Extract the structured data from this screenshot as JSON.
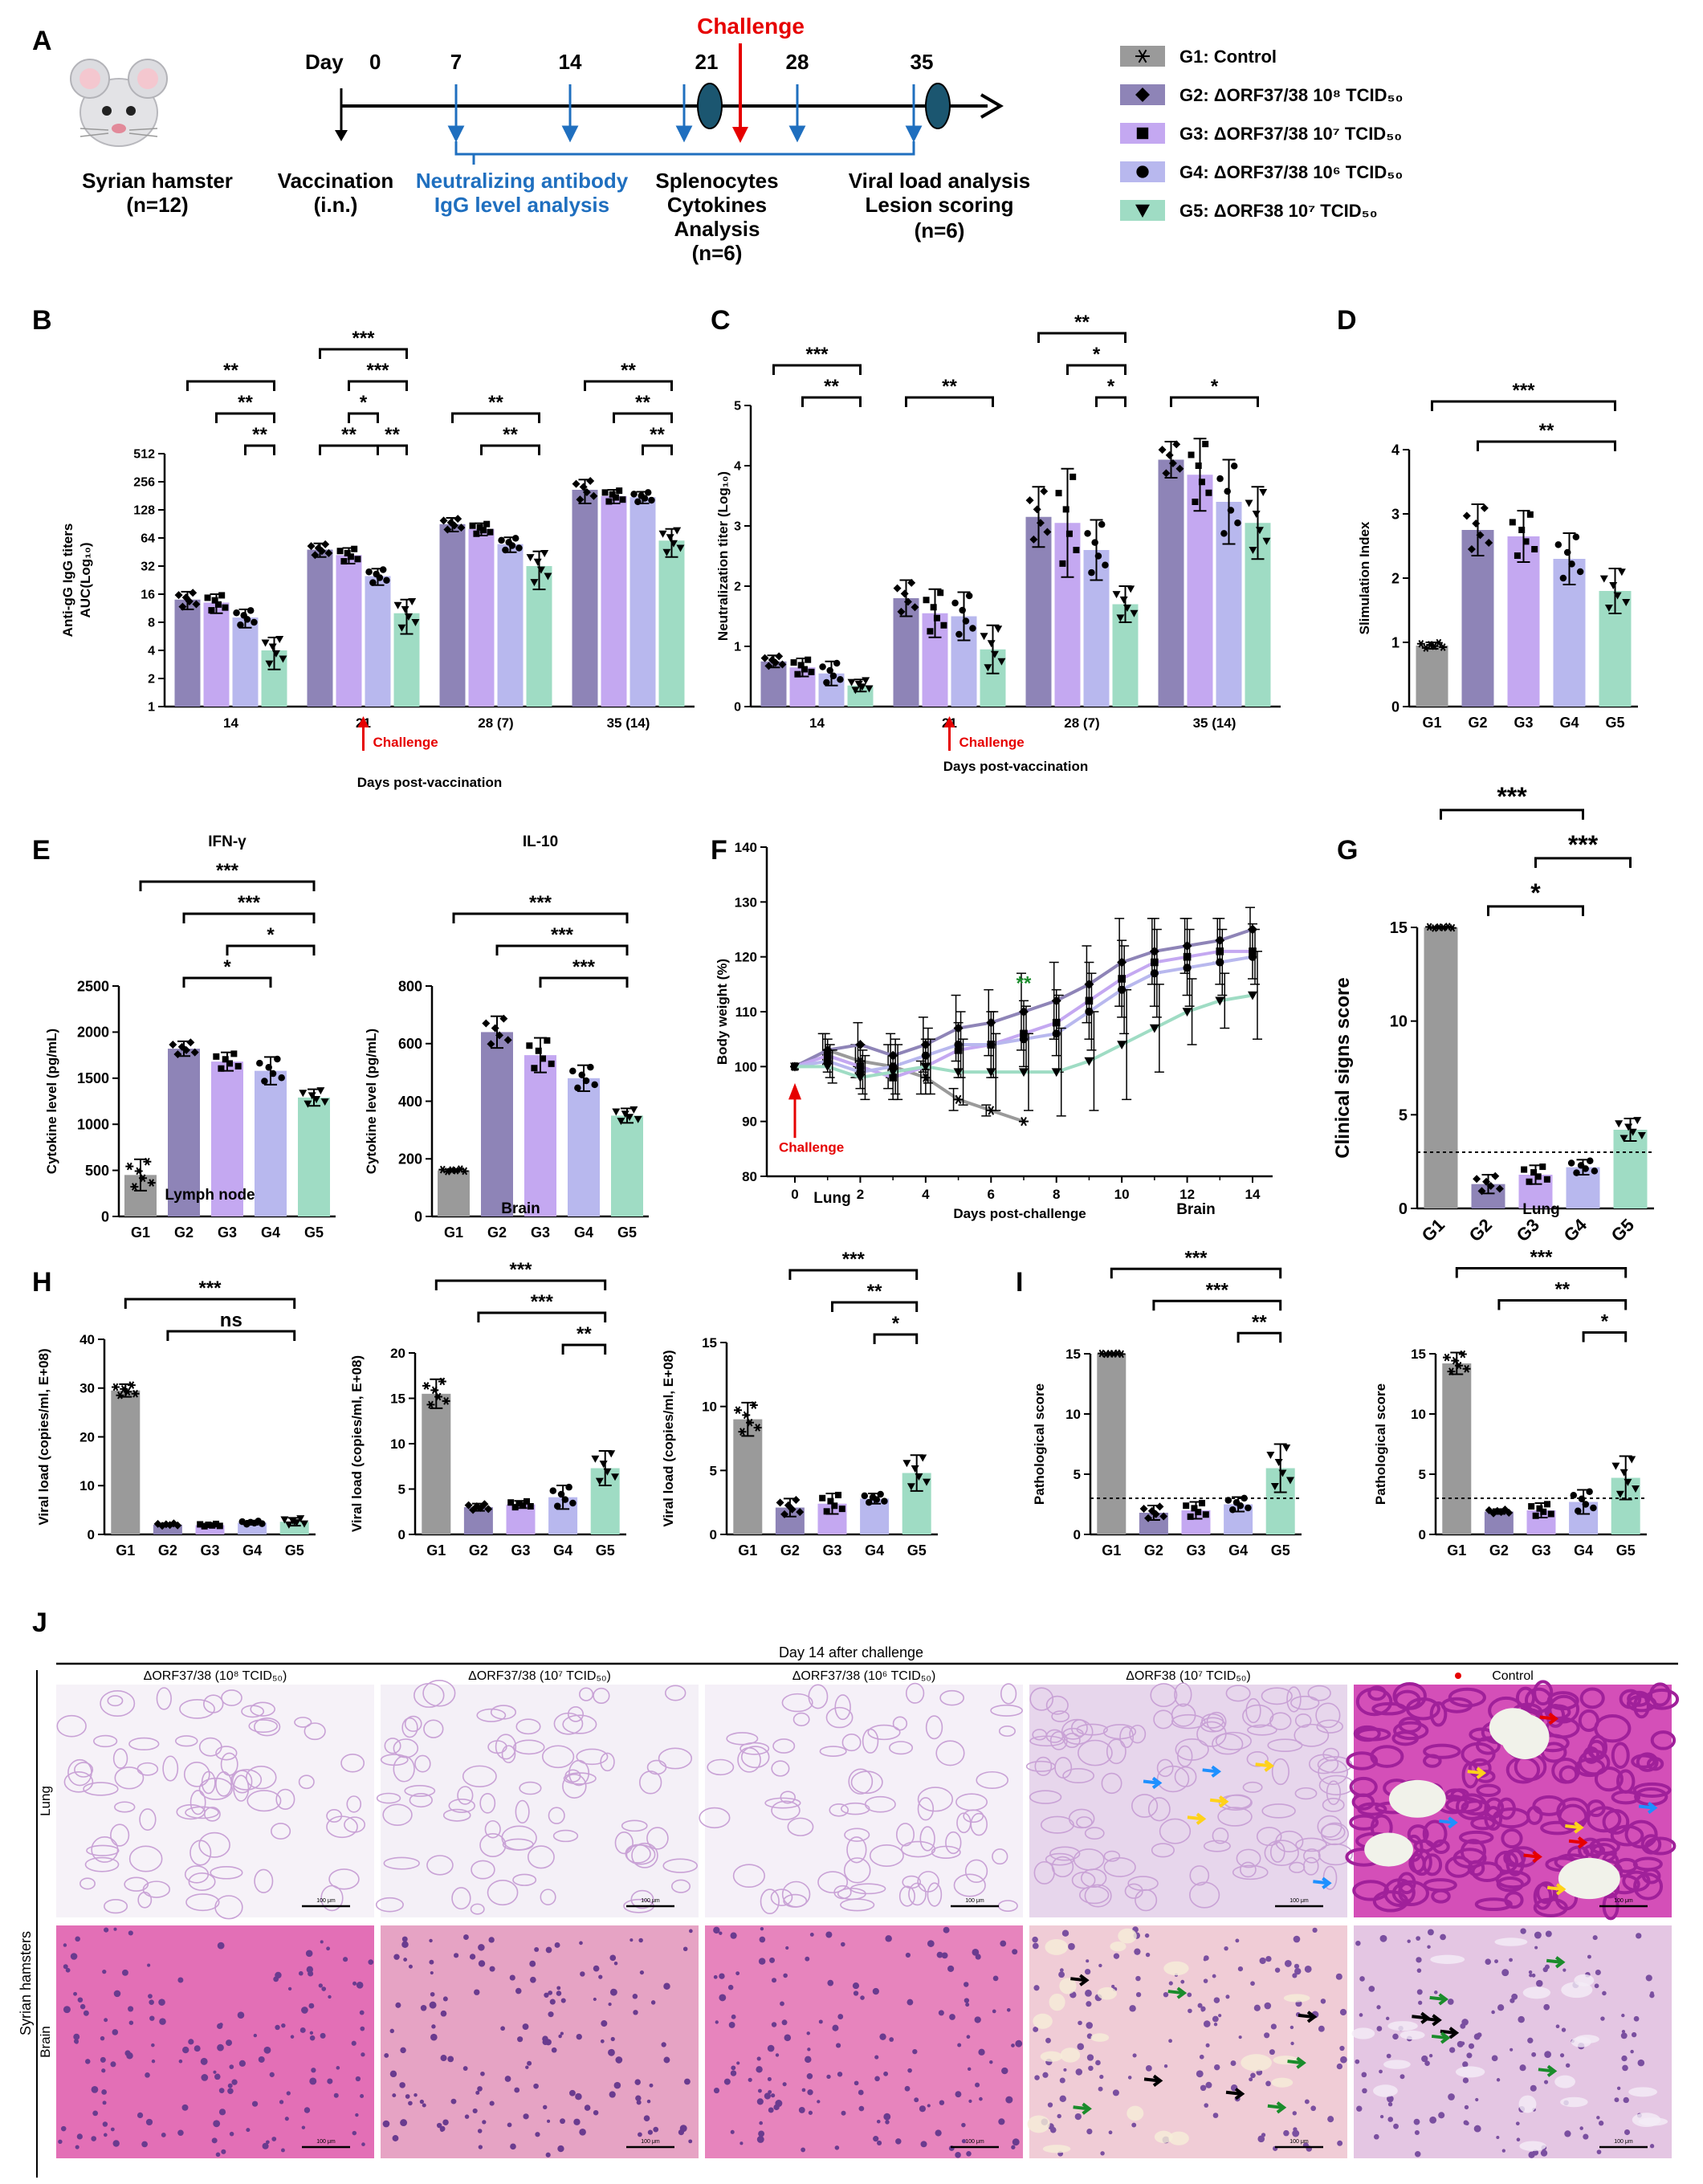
{
  "colors": {
    "g1": "#9a9a9a",
    "g2": "#8e84b7",
    "g3": "#c4a8f1",
    "g4": "#b8b8ee",
    "g5": "#9fdcc4",
    "blue": "#1f6fbf",
    "red": "#e60000",
    "green": "#1a8c2b",
    "ellipse": "#1b5670"
  },
  "panelA": {
    "letter": "A",
    "animal": "Syrian hamster",
    "n_total": "(n=12)",
    "day_label": "Day",
    "days": [
      "0",
      "7",
      "14",
      "21",
      "28",
      "35"
    ],
    "challenge": "Challenge",
    "vaccination": "Vaccination",
    "route": "(i.n.)",
    "nab_line1": "Neutralizing antibody",
    "nab_line2": "IgG level  analysis",
    "spl_line1": "Splenocytes",
    "spl_line2": "Cytokines",
    "spl_line3": "Analysis",
    "spl_n": "(n=6)",
    "vl_line1": "Viral load analysis",
    "vl_line2": "Lesion scoring",
    "vl_n": "(n=6)",
    "legend": [
      {
        "symbol": "asterisk",
        "group": "G1",
        "label": "G1: Control"
      },
      {
        "symbol": "diamond",
        "group": "G2",
        "label": "G2: ΔORF37/38 10⁸ TCID₅₀"
      },
      {
        "symbol": "square",
        "group": "G3",
        "label": "G3: ΔORF37/38 10⁷ TCID₅₀"
      },
      {
        "symbol": "circle",
        "group": "G4",
        "label": "G4: ΔORF37/38 10⁶ TCID₅₀"
      },
      {
        "symbol": "triangle",
        "group": "G5",
        "label": "G5: ΔORF38       10⁷ TCID₅₀"
      }
    ]
  },
  "chart_data": [
    {
      "id": "B",
      "type": "bar",
      "letter": "B",
      "ylabel_line1": "Anti-gG IgG titers",
      "ylabel_line2": "AUC(Log₁₀)",
      "xlabel": "Days post-vaccination",
      "challenge": "Challenge",
      "scale": "log2",
      "ylim": [
        1,
        512
      ],
      "yticks": [
        "1",
        "2",
        "4",
        "8",
        "16",
        "32",
        "64",
        "128",
        "256",
        "512"
      ],
      "categories": [
        "14",
        "21",
        "28 (7)",
        "35 (14)"
      ],
      "groups": [
        "G2",
        "G3",
        "G4",
        "G5"
      ],
      "values": [
        [
          14,
          13,
          9,
          4
        ],
        [
          48,
          42,
          25,
          10
        ],
        [
          90,
          80,
          55,
          32
        ],
        [
          210,
          180,
          175,
          60
        ]
      ],
      "errors": [
        [
          3,
          3,
          2,
          1.5
        ],
        [
          8,
          8,
          5,
          4
        ],
        [
          15,
          12,
          10,
          14
        ],
        [
          60,
          30,
          25,
          20
        ]
      ],
      "brackets": [
        {
          "cat": 0,
          "from": 0,
          "to": 3,
          "level": 2,
          "stars": "**"
        },
        {
          "cat": 0,
          "from": 1,
          "to": 3,
          "level": 1,
          "stars": "**"
        },
        {
          "cat": 0,
          "from": 2,
          "to": 3,
          "level": 0,
          "stars": "**"
        },
        {
          "cat": 1,
          "from": 0,
          "to": 3,
          "level": 3,
          "stars": "***"
        },
        {
          "cat": 1,
          "from": 1,
          "to": 3,
          "level": 2,
          "stars": "***"
        },
        {
          "cat": 1,
          "from": 1,
          "to": 2,
          "level": 1,
          "stars": "*"
        },
        {
          "cat": 1,
          "from": 0,
          "to": 2,
          "level": 0,
          "stars": "**"
        },
        {
          "cat": 1,
          "from": 2,
          "to": 3,
          "level": 0,
          "stars": "**"
        },
        {
          "cat": 2,
          "from": 0,
          "to": 3,
          "level": 1,
          "stars": "**"
        },
        {
          "cat": 2,
          "from": 1,
          "to": 3,
          "level": 0,
          "stars": "**"
        },
        {
          "cat": 3,
          "from": 0,
          "to": 3,
          "level": 2,
          "stars": "**"
        },
        {
          "cat": 3,
          "from": 1,
          "to": 3,
          "level": 1,
          "stars": "**"
        },
        {
          "cat": 3,
          "from": 2,
          "to": 3,
          "level": 0,
          "stars": "**"
        }
      ]
    },
    {
      "id": "C",
      "type": "bar",
      "letter": "C",
      "ylabel": "Neutralization titer (Log₁₀)",
      "xlabel": "Days post-vaccination",
      "challenge": "Challenge",
      "ylim": [
        0,
        5
      ],
      "yticks": [
        "0",
        "1",
        "2",
        "3",
        "4",
        "5"
      ],
      "categories": [
        "14",
        "21",
        "28 (7)",
        "35 (14)"
      ],
      "groups": [
        "G2",
        "G3",
        "G4",
        "G5"
      ],
      "values": [
        [
          0.75,
          0.65,
          0.55,
          0.35
        ],
        [
          1.8,
          1.55,
          1.5,
          0.95
        ],
        [
          3.15,
          3.05,
          2.6,
          1.7
        ],
        [
          4.1,
          3.85,
          3.4,
          3.05
        ]
      ],
      "errors": [
        [
          0.1,
          0.15,
          0.2,
          0.1
        ],
        [
          0.3,
          0.4,
          0.4,
          0.4
        ],
        [
          0.5,
          0.9,
          0.5,
          0.3
        ],
        [
          0.3,
          0.6,
          0.7,
          0.6
        ]
      ],
      "brackets": [
        {
          "cat": 0,
          "from": 0,
          "to": 3,
          "level": 1,
          "stars": "***"
        },
        {
          "cat": 0,
          "from": 1,
          "to": 3,
          "level": 0,
          "stars": "**"
        },
        {
          "cat": 1,
          "from": 0,
          "to": 3,
          "level": 0,
          "stars": "**"
        },
        {
          "cat": 2,
          "from": 0,
          "to": 3,
          "level": 2,
          "stars": "**"
        },
        {
          "cat": 2,
          "from": 1,
          "to": 3,
          "level": 1,
          "stars": "*"
        },
        {
          "cat": 2,
          "from": 2,
          "to": 3,
          "level": 0,
          "stars": "*"
        },
        {
          "cat": 3,
          "from": 0,
          "to": 3,
          "level": 0,
          "stars": "*"
        }
      ]
    },
    {
      "id": "D",
      "type": "bar",
      "letter": "D",
      "ylabel": "Slimulation Index",
      "ylim": [
        0,
        4
      ],
      "yticks": [
        "0",
        "1",
        "2",
        "3",
        "4"
      ],
      "categories": [
        "G1",
        "G2",
        "G3",
        "G4",
        "G5"
      ],
      "values": [
        0.95,
        2.75,
        2.65,
        2.3,
        1.8
      ],
      "errors": [
        0.05,
        0.4,
        0.4,
        0.4,
        0.35
      ],
      "brackets": [
        {
          "from": 0,
          "to": 4,
          "level": 1,
          "stars": "***"
        },
        {
          "from": 1,
          "to": 4,
          "level": 0,
          "stars": "**"
        }
      ]
    },
    {
      "id": "E1",
      "type": "bar",
      "letter": "E",
      "title": "IFN-γ",
      "ylabel": "Cytokine level (pg/mL)",
      "ylim": [
        0,
        2500
      ],
      "yticks": [
        "0",
        "500",
        "1000",
        "1500",
        "2000",
        "2500"
      ],
      "categories": [
        "G1",
        "G2",
        "G3",
        "G4",
        "G5"
      ],
      "values": [
        450,
        1820,
        1680,
        1580,
        1290
      ],
      "errors": [
        170,
        80,
        100,
        150,
        90
      ],
      "brackets": [
        {
          "from": 0,
          "to": 4,
          "level": 3,
          "stars": "***"
        },
        {
          "from": 1,
          "to": 4,
          "level": 2,
          "stars": "***"
        },
        {
          "from": 2,
          "to": 4,
          "level": 1,
          "stars": "*"
        },
        {
          "from": 1,
          "to": 3,
          "level": 0,
          "stars": "*"
        }
      ]
    },
    {
      "id": "E2",
      "type": "bar",
      "title": "IL-10",
      "ylabel": "Cytokine level (pg/mL)",
      "ylim": [
        0,
        800
      ],
      "yticks": [
        "0",
        "200",
        "400",
        "600",
        "800"
      ],
      "categories": [
        "G1",
        "G2",
        "G3",
        "G4",
        "G5"
      ],
      "values": [
        160,
        640,
        560,
        480,
        350
      ],
      "errors": [
        5,
        55,
        60,
        45,
        25
      ],
      "brackets": [
        {
          "from": 0,
          "to": 4,
          "level": 2,
          "stars": "***"
        },
        {
          "from": 1,
          "to": 4,
          "level": 1,
          "stars": "***"
        },
        {
          "from": 2,
          "to": 4,
          "level": 0,
          "stars": "***"
        }
      ]
    },
    {
      "id": "F",
      "type": "line",
      "letter": "F",
      "ylabel": "Body weight (%)",
      "xlabel": "Days post-challenge",
      "challenge": "Challenge",
      "xlim": [
        0,
        14
      ],
      "ylim": [
        80,
        140
      ],
      "xticks": [
        "0",
        "2",
        "4",
        "6",
        "8",
        "10",
        "12",
        "14"
      ],
      "yticks": [
        "80",
        "90",
        "100",
        "110",
        "120",
        "130",
        "140"
      ],
      "annotation": "**",
      "annotation_x": 7,
      "annotation_y": 114,
      "series": [
        {
          "name": "G1",
          "x": [
            0,
            1,
            2,
            3,
            4,
            5,
            6,
            7
          ],
          "y": [
            100,
            103,
            101,
            100,
            98,
            94,
            92,
            90
          ],
          "err": [
            0,
            3,
            3,
            4,
            3,
            2,
            1,
            0
          ]
        },
        {
          "name": "G2",
          "x": [
            0,
            1,
            2,
            3,
            4,
            5,
            6,
            7,
            8,
            9,
            10,
            11,
            12,
            13,
            14
          ],
          "y": [
            100,
            103,
            104,
            102,
            104,
            107,
            108,
            110,
            112,
            115,
            119,
            121,
            122,
            123,
            125
          ],
          "err": [
            0,
            3,
            4,
            4,
            5,
            6,
            6,
            7,
            7,
            7,
            8,
            6,
            5,
            4,
            4
          ]
        },
        {
          "name": "G3",
          "x": [
            0,
            1,
            2,
            3,
            4,
            5,
            6,
            7,
            8,
            9,
            10,
            11,
            12,
            13,
            14
          ],
          "y": [
            100,
            102,
            100,
            98,
            100,
            103,
            104,
            106,
            108,
            112,
            116,
            119,
            120,
            121,
            121
          ],
          "err": [
            0,
            3,
            4,
            4,
            5,
            5,
            6,
            6,
            6,
            7,
            7,
            8,
            7,
            6,
            5
          ]
        },
        {
          "name": "G4",
          "x": [
            0,
            1,
            2,
            3,
            4,
            5,
            6,
            7,
            8,
            9,
            10,
            11,
            12,
            13,
            14
          ],
          "y": [
            100,
            101,
            99,
            100,
            102,
            104,
            104,
            105,
            106,
            110,
            114,
            117,
            118,
            119,
            120
          ],
          "err": [
            0,
            3,
            4,
            5,
            5,
            6,
            6,
            6,
            7,
            7,
            8,
            8,
            7,
            6,
            5
          ]
        },
        {
          "name": "G5",
          "x": [
            0,
            1,
            2,
            3,
            4,
            5,
            6,
            7,
            8,
            9,
            10,
            11,
            12,
            13,
            14
          ],
          "y": [
            100,
            100,
            98,
            99,
            100,
            99,
            99,
            99,
            99,
            101,
            104,
            107,
            110,
            112,
            113
          ],
          "err": [
            0,
            3,
            4,
            5,
            5,
            6,
            7,
            7,
            8,
            9,
            10,
            8,
            6,
            5,
            8
          ]
        }
      ]
    },
    {
      "id": "G",
      "type": "bar",
      "letter": "G",
      "ylabel": "Clinical signs score",
      "ylim": [
        0,
        15
      ],
      "yticks": [
        "0",
        "5",
        "10",
        "15"
      ],
      "categories": [
        "G1",
        "G2",
        "G3",
        "G4",
        "G5"
      ],
      "values": [
        15,
        1.3,
        1.8,
        2.2,
        4.2
      ],
      "errors": [
        0.05,
        0.5,
        0.5,
        0.4,
        0.6
      ],
      "threshold": 3,
      "brackets": [
        {
          "from": 0,
          "to": 3,
          "level": 2,
          "stars": "***"
        },
        {
          "from": 2,
          "to": 4,
          "level": 1,
          "stars": "***"
        },
        {
          "from": 1,
          "to": 3,
          "level": 0,
          "stars": "*"
        }
      ]
    },
    {
      "id": "H1",
      "type": "bar",
      "letter": "H",
      "title": "Lymph node",
      "ylabel": "Viral load (copies/ml, E+08)",
      "ylim": [
        0,
        40
      ],
      "yticks": [
        "0",
        "10",
        "20",
        "30",
        "40"
      ],
      "categories": [
        "G1",
        "G2",
        "G3",
        "G4",
        "G5"
      ],
      "values": [
        29.5,
        2.0,
        1.9,
        2.4,
        2.6
      ],
      "errors": [
        1.3,
        0.3,
        0.3,
        0.4,
        0.8
      ],
      "brackets": [
        {
          "from": 0,
          "to": 4,
          "level": 1,
          "stars": "***"
        },
        {
          "from": 1,
          "to": 4,
          "level": 0,
          "stars": "ns"
        }
      ]
    },
    {
      "id": "H2",
      "type": "bar",
      "title": "Brain",
      "ylabel": "Viral load (copies/ml, E+08)",
      "ylim": [
        0,
        20
      ],
      "yticks": [
        "0",
        "5",
        "10",
        "15",
        "20"
      ],
      "categories": [
        "G1",
        "G2",
        "G3",
        "G4",
        "G5"
      ],
      "values": [
        15.5,
        3.0,
        3.3,
        4.1,
        7.3
      ],
      "errors": [
        1.6,
        0.4,
        0.4,
        1.3,
        1.9
      ],
      "brackets": [
        {
          "from": 0,
          "to": 4,
          "level": 2,
          "stars": "***"
        },
        {
          "from": 1,
          "to": 4,
          "level": 1,
          "stars": "***"
        },
        {
          "from": 3,
          "to": 4,
          "level": 0,
          "stars": "**"
        }
      ]
    },
    {
      "id": "H3",
      "type": "bar",
      "title": "Lung",
      "ylabel": "Viral load (copies/ml, E+08)",
      "ylim": [
        0,
        15
      ],
      "yticks": [
        "0",
        "5",
        "10",
        "15"
      ],
      "categories": [
        "G1",
        "G2",
        "G3",
        "G4",
        "G5"
      ],
      "values": [
        9.0,
        2.1,
        2.4,
        2.8,
        4.8
      ],
      "errors": [
        1.3,
        0.7,
        0.8,
        0.4,
        1.4
      ],
      "brackets": [
        {
          "from": 1,
          "to": 4,
          "level": 2,
          "stars": "***"
        },
        {
          "from": 2,
          "to": 4,
          "level": 1,
          "stars": "**"
        },
        {
          "from": 3,
          "to": 4,
          "level": 0,
          "stars": "*"
        }
      ]
    },
    {
      "id": "I1",
      "type": "bar",
      "letter": "I",
      "title": "Brain",
      "ylabel": "Pathological score",
      "ylim": [
        0,
        15
      ],
      "yticks": [
        "0",
        "5",
        "10",
        "15"
      ],
      "categories": [
        "G1",
        "G2",
        "G3",
        "G4",
        "G5"
      ],
      "values": [
        15,
        1.8,
        2.0,
        2.5,
        5.5
      ],
      "errors": [
        0.05,
        0.6,
        0.7,
        0.6,
        2.0
      ],
      "threshold": 3,
      "brackets": [
        {
          "from": 0,
          "to": 4,
          "level": 2,
          "stars": "***"
        },
        {
          "from": 1,
          "to": 4,
          "level": 1,
          "stars": "***"
        },
        {
          "from": 3,
          "to": 4,
          "level": 0,
          "stars": "**"
        }
      ]
    },
    {
      "id": "I2",
      "type": "bar",
      "title": "Lung",
      "ylabel": "Pathological score",
      "ylim": [
        0,
        15
      ],
      "yticks": [
        "0",
        "5",
        "10",
        "15"
      ],
      "categories": [
        "G1",
        "G2",
        "G3",
        "G4",
        "G5"
      ],
      "values": [
        14.2,
        1.9,
        2.0,
        2.7,
        4.7
      ],
      "errors": [
        0.9,
        0.2,
        0.6,
        1.0,
        1.8
      ],
      "threshold": 3,
      "brackets": [
        {
          "from": 0,
          "to": 4,
          "level": 2,
          "stars": "***"
        },
        {
          "from": 1,
          "to": 4,
          "level": 1,
          "stars": "**"
        },
        {
          "from": 3,
          "to": 4,
          "level": 0,
          "stars": "*"
        }
      ]
    }
  ],
  "panelJ": {
    "letter": "J",
    "header": "Day 14 after challenge",
    "side_label": "Syrian hamsters",
    "rows": [
      "Lung",
      "Brain"
    ],
    "columns": [
      "ΔORF37/38 (10⁸ TCID₅₀)",
      "ΔORF37/38 (10⁷ TCID₅₀)",
      "ΔORF37/38 (10⁶ TCID₅₀)",
      "ΔORF38 (10⁷ TCID₅₀)",
      "Control"
    ],
    "scalebar": "100 μm",
    "lung_bg": [
      "#f6f2f8",
      "#f4f0f7",
      "#f5f0f8",
      "#e7d6ec",
      "#d44fb8"
    ],
    "brain_bg": [
      "#e36fb6",
      "#e6a3c4",
      "#e784bd",
      "#f0ccd6",
      "#e4c6e3"
    ]
  }
}
